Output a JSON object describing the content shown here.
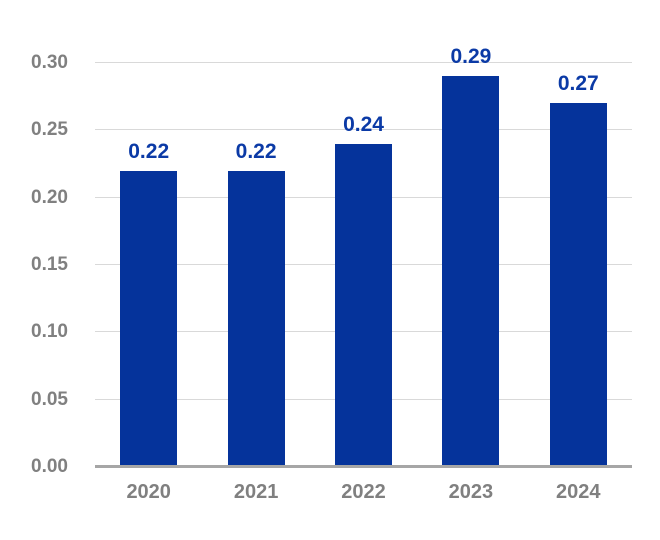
{
  "chart_data": {
    "type": "bar",
    "title": "",
    "xlabel": "",
    "ylabel": "",
    "categories": [
      "2020",
      "2021",
      "2022",
      "2023",
      "2024"
    ],
    "values": [
      0.22,
      0.22,
      0.24,
      0.29,
      0.27
    ],
    "value_labels": [
      "0.22",
      "0.22",
      "0.24",
      "0.29",
      "0.27"
    ],
    "ylim": [
      0,
      0.3
    ],
    "yticks": [
      0.0,
      0.05,
      0.1,
      0.15,
      0.2,
      0.25,
      0.3
    ],
    "ytick_labels": [
      "0.00",
      "0.05",
      "0.10",
      "0.15",
      "0.20",
      "0.25",
      "0.30"
    ],
    "grid": true,
    "legend": false,
    "colors": {
      "bar": "#05339b",
      "value_label": "#0b3aa6",
      "axis_text": "#808080",
      "gridline": "#d9d9d9",
      "baseline": "#a6a6a6",
      "background": "#ffffff"
    }
  }
}
